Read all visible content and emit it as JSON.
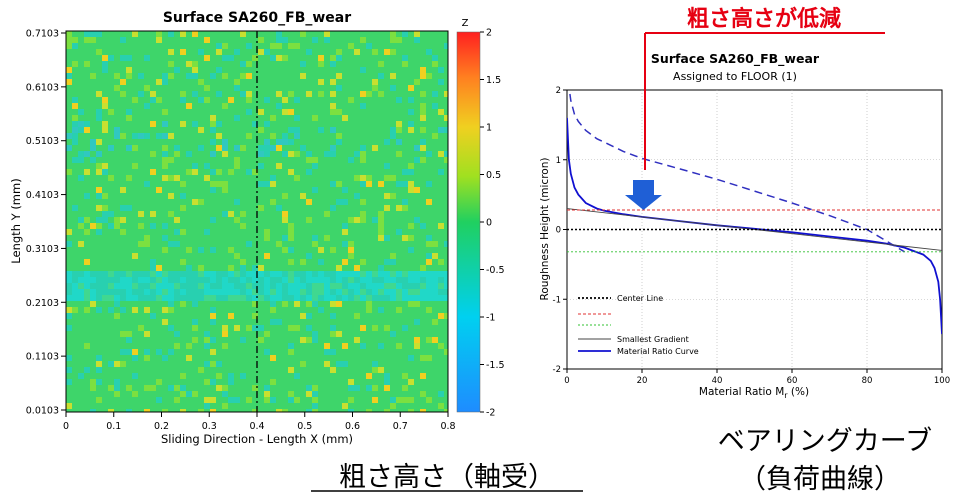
{
  "heatmap": {
    "title": "Surface SA260_FB_wear",
    "colorbar_label": "Z",
    "colorbar_ticks": [
      "2",
      "1.5",
      "1",
      "0.5",
      "0",
      "-0.5",
      "-1",
      "-1.5",
      "-2"
    ],
    "xlabel": "Sliding Direction - Length X (mm)",
    "ylabel": "Length Y (mm)",
    "xticks": [
      "0",
      "0.1",
      "0.2",
      "0.3",
      "0.4",
      "0.5",
      "0.6",
      "0.7",
      "0.8"
    ],
    "yticks": [
      "0.7103",
      "0.6103",
      "0.5103",
      "0.4103",
      "0.3103",
      "0.2103",
      "0.1103",
      "0.0103"
    ]
  },
  "caption_left": "粗さ高さ（軸受）",
  "bearing": {
    "title": "Surface SA260_FB_wear",
    "subtitle": "Assigned to FLOOR (1)",
    "xlabel_main": "Material Ratio M",
    "xlabel_sub": "r",
    "xlabel_unit": " (%)",
    "ylabel": "Roughness Height (micron)",
    "xticks": [
      "0",
      "20",
      "40",
      "60",
      "80",
      "100"
    ],
    "yticks": [
      "2",
      "1",
      "0",
      "-1",
      "-2"
    ],
    "legend": [
      {
        "label": "Center Line",
        "color": "#000000",
        "dash": "2,2"
      },
      {
        "label": "",
        "color": "#e03030",
        "dash": "3,2"
      },
      {
        "label": "",
        "color": "#30c030",
        "dash": "2,2"
      },
      {
        "label": "Smallest Gradient",
        "color": "#444444",
        "dash": ""
      },
      {
        "label": "Material Ratio Curve",
        "color": "#1010d0",
        "dash": ""
      }
    ]
  },
  "annotation_top": "粗さ高さが低減",
  "caption_right_line1": "ベアリングカーブ",
  "caption_right_line2": "（負荷曲線）",
  "colors": {
    "accent_red": "#e60012",
    "arrow_blue": "#1f5fd6",
    "curve_blue": "#1010d0"
  },
  "chart_data": [
    {
      "type": "heatmap",
      "title": "Surface SA260_FB_wear",
      "xlabel": "Sliding Direction - Length X (mm)",
      "ylabel": "Length Y (mm)",
      "xlim": [
        0,
        0.8
      ],
      "ylim": [
        0.0103,
        0.7103
      ],
      "zlim": [
        -2,
        2
      ],
      "colorbar_label": "Z"
    },
    {
      "type": "line",
      "title": "Surface SA260_FB_wear",
      "subtitle": "Assigned to FLOOR (1)",
      "xlabel": "Material Ratio Mr (%)",
      "ylabel": "Roughness Height (micron)",
      "xlim": [
        0,
        100
      ],
      "ylim": [
        -2,
        2
      ],
      "grid": true,
      "legend_position": "bottom-left",
      "series": [
        {
          "name": "Material Ratio Curve",
          "x": [
            0,
            0.5,
            1,
            2,
            3,
            5,
            8,
            10,
            15,
            20,
            30,
            40,
            50,
            60,
            70,
            80,
            85,
            90,
            95,
            97,
            98,
            99,
            99.5,
            100
          ],
          "y": [
            1.6,
            1.0,
            0.8,
            0.6,
            0.5,
            0.38,
            0.3,
            0.27,
            0.22,
            0.18,
            0.12,
            0.06,
            0.01,
            -0.04,
            -0.1,
            -0.16,
            -0.2,
            -0.26,
            -0.36,
            -0.45,
            -0.55,
            -0.75,
            -1.0,
            -1.5
          ]
        },
        {
          "name": "",
          "x": [
            0,
            0.5,
            1,
            2,
            3,
            5,
            8,
            10,
            15,
            20,
            30,
            40,
            50,
            60,
            70,
            80,
            90
          ],
          "y": [
            2.5,
            2.05,
            1.85,
            1.65,
            1.55,
            1.42,
            1.3,
            1.25,
            1.12,
            1.02,
            0.87,
            0.72,
            0.55,
            0.38,
            0.2,
            0.0,
            -0.32
          ]
        },
        {
          "name": "Smallest Gradient",
          "x": [
            0,
            100
          ],
          "y": [
            0.3,
            -0.3
          ]
        },
        {
          "name": "Center Line",
          "x": [
            0,
            100
          ],
          "y": [
            0,
            0
          ]
        },
        {
          "name": "",
          "x": [
            0,
            100
          ],
          "y": [
            0.28,
            0.28
          ]
        },
        {
          "name": "",
          "x": [
            0,
            100
          ],
          "y": [
            -0.32,
            -0.32
          ]
        }
      ]
    }
  ]
}
